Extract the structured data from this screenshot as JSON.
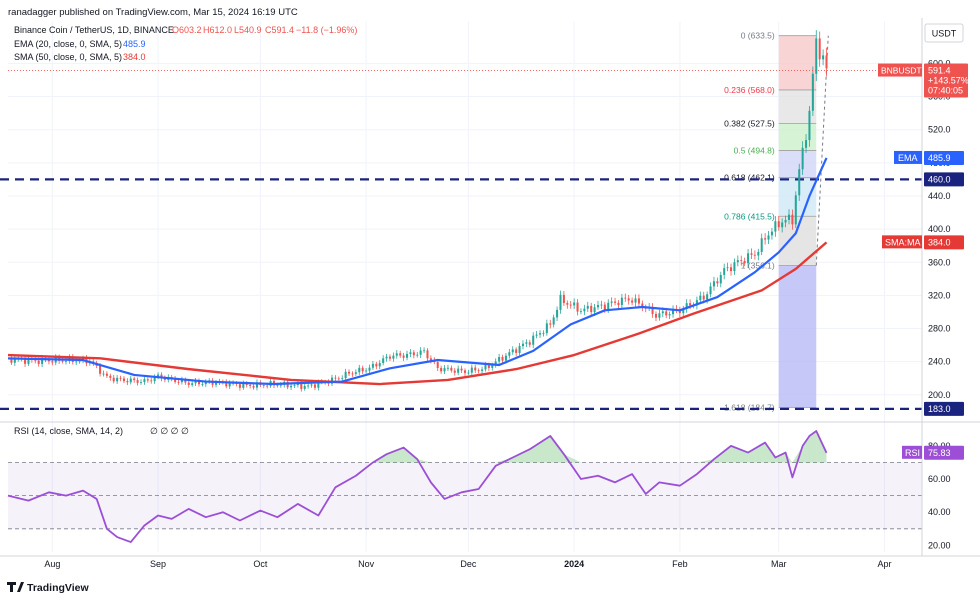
{
  "header": {
    "publisher": "ranadagger published on TradingView.com, Mar 15, 2024 16:19 UTC",
    "symbol_line": "Binance Coin / TetherUS, 1D, BINANCE",
    "ohlc": {
      "o": "O603.2",
      "h": "H612.0",
      "l": "L540.9",
      "c": "C591.4",
      "chg": "−11.8 (−1.96%)"
    },
    "ema_line": "EMA (20, close, 0, SMA, 5)",
    "ema_value": "485.9",
    "sma_line": "SMA (50, close, 0, SMA, 5)",
    "sma_value": "384.0"
  },
  "currency": "USDT",
  "footer_logo": "TradingView",
  "colors": {
    "up": "#26a69a",
    "down": "#ef5350",
    "ema": "#2962ff",
    "sma": "#e53935",
    "rsi": "#9c4fd6",
    "hline": "#1a237e"
  },
  "chart_data": [
    {
      "type": "candlestick",
      "title": "Binance Coin / TetherUS, 1D, BINANCE",
      "x_tick_labels": [
        "Aug",
        "Sep",
        "Oct",
        "Nov",
        "Dec",
        "2024",
        "Feb",
        "Mar",
        "Apr"
      ],
      "x_tick_dates": [
        "2023-08-01",
        "2023-09-01",
        "2023-10-01",
        "2023-11-01",
        "2023-12-01",
        "2024-01-01",
        "2024-02-01",
        "2024-03-01",
        "2024-04-01"
      ],
      "y_ticks": [
        200,
        240,
        280,
        320,
        360,
        400,
        440,
        480,
        520,
        560,
        600
      ],
      "y_tick_labels": [
        "200.0",
        "240.0",
        "280.0",
        "320.0",
        "360.0",
        "400.0",
        "440.0",
        "480.0",
        "520.0",
        "560.0",
        "600.0"
      ],
      "ylim": [
        172,
        650
      ],
      "xlim": [
        "2023-07-19",
        "2024-04-12"
      ],
      "close_series": [
        [
          "2023-07-19",
          243
        ],
        [
          "2023-07-27",
          241
        ],
        [
          "2023-08-05",
          242
        ],
        [
          "2023-08-12",
          241
        ],
        [
          "2023-08-17",
          221
        ],
        [
          "2023-08-21",
          218
        ],
        [
          "2023-08-28",
          216
        ],
        [
          "2023-09-01",
          222
        ],
        [
          "2023-09-10",
          214
        ],
        [
          "2023-09-18",
          215
        ],
        [
          "2023-09-27",
          211
        ],
        [
          "2023-10-05",
          213
        ],
        [
          "2023-10-15",
          210
        ],
        [
          "2023-10-23",
          219
        ],
        [
          "2023-10-27",
          226
        ],
        [
          "2023-11-02",
          232
        ],
        [
          "2023-11-08",
          247
        ],
        [
          "2023-11-13",
          248
        ],
        [
          "2023-11-18",
          252
        ],
        [
          "2023-11-22",
          232
        ],
        [
          "2023-11-30",
          228
        ],
        [
          "2023-12-06",
          232
        ],
        [
          "2023-12-13",
          250
        ],
        [
          "2023-12-19",
          265
        ],
        [
          "2023-12-25",
          285
        ],
        [
          "2023-12-28",
          315
        ],
        [
          "2024-01-03",
          302
        ],
        [
          "2024-01-10",
          308
        ],
        [
          "2024-01-17",
          316
        ],
        [
          "2024-01-21",
          308
        ],
        [
          "2024-01-25",
          296
        ],
        [
          "2024-02-01",
          302
        ],
        [
          "2024-02-08",
          318
        ],
        [
          "2024-02-14",
          350
        ],
        [
          "2024-02-18",
          360
        ],
        [
          "2024-02-23",
          370
        ],
        [
          "2024-02-27",
          395
        ],
        [
          "2024-03-02",
          410
        ],
        [
          "2024-03-05",
          412
        ],
        [
          "2024-03-07",
          470
        ],
        [
          "2024-03-10",
          540
        ],
        [
          "2024-03-12",
          628
        ],
        [
          "2024-03-14",
          603
        ],
        [
          "2024-03-15",
          591.4
        ]
      ],
      "ema20": [
        [
          "2023-07-19",
          244
        ],
        [
          "2023-08-10",
          242
        ],
        [
          "2023-08-25",
          224
        ],
        [
          "2023-09-15",
          216
        ],
        [
          "2023-10-05",
          213
        ],
        [
          "2023-10-25",
          216
        ],
        [
          "2023-11-08",
          232
        ],
        [
          "2023-11-22",
          242
        ],
        [
          "2023-12-10",
          236
        ],
        [
          "2023-12-20",
          253
        ],
        [
          "2023-12-31",
          285
        ],
        [
          "2024-01-10",
          302
        ],
        [
          "2024-01-21",
          306
        ],
        [
          "2024-02-01",
          302
        ],
        [
          "2024-02-12",
          318
        ],
        [
          "2024-02-23",
          348
        ],
        [
          "2024-03-01",
          372
        ],
        [
          "2024-03-06",
          395
        ],
        [
          "2024-03-10",
          440
        ],
        [
          "2024-03-15",
          485.9
        ]
      ],
      "sma50": [
        [
          "2023-07-19",
          248
        ],
        [
          "2023-08-15",
          244
        ],
        [
          "2023-09-10",
          231
        ],
        [
          "2023-10-10",
          218
        ],
        [
          "2023-11-05",
          213
        ],
        [
          "2023-11-25",
          218
        ],
        [
          "2023-12-15",
          231
        ],
        [
          "2024-01-01",
          248
        ],
        [
          "2024-01-20",
          274
        ],
        [
          "2024-02-05",
          298
        ],
        [
          "2024-02-25",
          326
        ],
        [
          "2024-03-06",
          352
        ],
        [
          "2024-03-15",
          384.0
        ]
      ],
      "horizontal_lines": [
        {
          "value": 460.0,
          "label": "460.0"
        },
        {
          "value": 183.0,
          "label": "183.0"
        }
      ],
      "price_labels": {
        "symbol": "BNBUSDT",
        "price": "591.4",
        "change": "+143.57%",
        "countdown": "07:40:05",
        "ema_tag": "EMA",
        "ema_value": "485.9",
        "sma_tag": "SMA:MA",
        "sma_value": "384.0"
      },
      "fibonacci": {
        "start": [
          "2024-03-01",
          633.5
        ],
        "end": [
          "2024-03-12",
          356.1
        ],
        "levels": [
          {
            "label": "0 (633.5)",
            "value": 633.5
          },
          {
            "label": "0.236 (568.0)",
            "value": 568.0
          },
          {
            "label": "0.382 (527.5)",
            "value": 527.5
          },
          {
            "label": "0.5 (494.8)",
            "value": 494.8
          },
          {
            "label": "0.618 (462.1)",
            "value": 462.1
          },
          {
            "label": "0.786 (415.5)",
            "value": 415.5
          },
          {
            "label": "1 (356.1)",
            "value": 356.1
          },
          {
            "label": "1.618 (184.7)",
            "value": 184.7
          }
        ]
      }
    },
    {
      "type": "line",
      "title": "RSI (14, close, SMA, 14, 2)",
      "legend_text": "RSI (14, close, SMA, 14, 2)",
      "legend_values": "∅ ∅ ∅ ∅",
      "y_ticks": [
        20,
        40,
        60,
        80
      ],
      "y_tick_labels": [
        "20.00",
        "40.00",
        "60.00",
        "80.00"
      ],
      "ylim": [
        16,
        92
      ],
      "bands": {
        "upper": 70,
        "middle": 50,
        "lower": 30
      },
      "current": {
        "tag": "RSI",
        "value": "75.83"
      },
      "series": [
        [
          "2023-07-19",
          50
        ],
        [
          "2023-07-25",
          47
        ],
        [
          "2023-07-31",
          52
        ],
        [
          "2023-08-05",
          50
        ],
        [
          "2023-08-10",
          53
        ],
        [
          "2023-08-14",
          48
        ],
        [
          "2023-08-17",
          30
        ],
        [
          "2023-08-20",
          25
        ],
        [
          "2023-08-24",
          22
        ],
        [
          "2023-08-28",
          32
        ],
        [
          "2023-09-01",
          38
        ],
        [
          "2023-09-05",
          36
        ],
        [
          "2023-09-10",
          42
        ],
        [
          "2023-09-15",
          37
        ],
        [
          "2023-09-20",
          40
        ],
        [
          "2023-09-25",
          35
        ],
        [
          "2023-10-01",
          41
        ],
        [
          "2023-10-06",
          37
        ],
        [
          "2023-10-12",
          45
        ],
        [
          "2023-10-18",
          38
        ],
        [
          "2023-10-23",
          55
        ],
        [
          "2023-10-29",
          62
        ],
        [
          "2023-11-03",
          70
        ],
        [
          "2023-11-07",
          75
        ],
        [
          "2023-11-12",
          79
        ],
        [
          "2023-11-16",
          72
        ],
        [
          "2023-11-20",
          58
        ],
        [
          "2023-11-24",
          48
        ],
        [
          "2023-11-29",
          52
        ],
        [
          "2023-12-04",
          54
        ],
        [
          "2023-12-09",
          68
        ],
        [
          "2023-12-14",
          73
        ],
        [
          "2023-12-19",
          78
        ],
        [
          "2023-12-25",
          86
        ],
        [
          "2023-12-29",
          75
        ],
        [
          "2024-01-03",
          60
        ],
        [
          "2024-01-08",
          62
        ],
        [
          "2024-01-13",
          58
        ],
        [
          "2024-01-18",
          63
        ],
        [
          "2024-01-22",
          51
        ],
        [
          "2024-01-26",
          58
        ],
        [
          "2024-02-01",
          56
        ],
        [
          "2024-02-06",
          63
        ],
        [
          "2024-02-11",
          72
        ],
        [
          "2024-02-16",
          80
        ],
        [
          "2024-02-21",
          76
        ],
        [
          "2024-02-26",
          82
        ],
        [
          "2024-02-29",
          73
        ],
        [
          "2024-03-03",
          76
        ],
        [
          "2024-03-05",
          61
        ],
        [
          "2024-03-08",
          80
        ],
        [
          "2024-03-10",
          86
        ],
        [
          "2024-03-12",
          89
        ],
        [
          "2024-03-15",
          75.83
        ]
      ]
    }
  ]
}
